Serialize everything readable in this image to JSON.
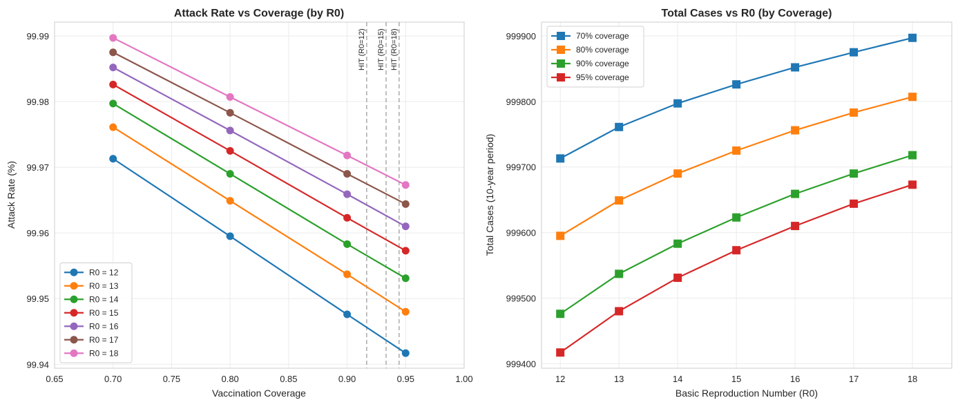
{
  "chart_data": [
    {
      "type": "line",
      "title": "Attack Rate vs Coverage (by R0)",
      "xlabel": "Vaccination Coverage",
      "ylabel": "Attack Rate (%)",
      "xlim": [
        0.65,
        1.0
      ],
      "ylim": [
        99.9394,
        99.9921
      ],
      "xticks": [
        "0.65",
        "0.70",
        "0.75",
        "0.80",
        "0.85",
        "0.90",
        "0.95",
        "1.00"
      ],
      "yticks": [
        "99.94",
        "99.95",
        "99.96",
        "99.97",
        "99.98",
        "99.99"
      ],
      "grid": true,
      "legend_position": "lower-left",
      "marker": "circle",
      "x": [
        0.7,
        0.8,
        0.9,
        0.95
      ],
      "series": [
        {
          "name": "R0 = 12",
          "color": "#1f77b4",
          "values": [
            99.9713,
            99.9595,
            99.9476,
            99.9417
          ]
        },
        {
          "name": "R0 = 13",
          "color": "#ff7f0e",
          "values": [
            99.9761,
            99.9649,
            99.9537,
            99.948
          ]
        },
        {
          "name": "R0 = 14",
          "color": "#2ca02c",
          "values": [
            99.9797,
            99.969,
            99.9583,
            99.9531
          ]
        },
        {
          "name": "R0 = 15",
          "color": "#d62728",
          "values": [
            99.9826,
            99.9725,
            99.9623,
            99.9573
          ]
        },
        {
          "name": "R0 = 16",
          "color": "#9467bd",
          "values": [
            99.9852,
            99.9756,
            99.9659,
            99.961
          ]
        },
        {
          "name": "R0 = 17",
          "color": "#8c564b",
          "values": [
            99.9875,
            99.9783,
            99.969,
            99.9644
          ]
        },
        {
          "name": "R0 = 18",
          "color": "#e377c2",
          "values": [
            99.9897,
            99.9807,
            99.9718,
            99.9673
          ]
        }
      ],
      "annotations": [
        {
          "label": "HIT (R0=12)",
          "x": 0.9167
        },
        {
          "label": "HIT (R0=15)",
          "x": 0.9333
        },
        {
          "label": "HIT (R0=18)",
          "x": 0.9444
        }
      ]
    },
    {
      "type": "line",
      "title": "Total Cases vs R0 (by Coverage)",
      "xlabel": "Basic Reproduction Number (R0)",
      "ylabel": "Total Cases (10-year period)",
      "xlim": [
        11.68,
        18.67
      ],
      "ylim": [
        999393,
        999921
      ],
      "xticks": [
        "12",
        "13",
        "14",
        "15",
        "16",
        "17",
        "18"
      ],
      "yticks": [
        "999400",
        "999500",
        "999600",
        "999700",
        "999800",
        "999900"
      ],
      "grid": true,
      "legend_position": "upper-left",
      "marker": "square",
      "x": [
        12,
        13,
        14,
        15,
        16,
        17,
        18
      ],
      "series": [
        {
          "name": "70% coverage",
          "color": "#1f77b4",
          "values": [
            999713,
            999761,
            999797,
            999826,
            999852,
            999875,
            999897
          ]
        },
        {
          "name": "80% coverage",
          "color": "#ff7f0e",
          "values": [
            999595,
            999649,
            999690,
            999725,
            999756,
            999783,
            999807
          ]
        },
        {
          "name": "90% coverage",
          "color": "#2ca02c",
          "values": [
            999476,
            999537,
            999583,
            999623,
            999659,
            999690,
            999718
          ]
        },
        {
          "name": "95% coverage",
          "color": "#d62728",
          "values": [
            999417,
            999480,
            999531,
            999573,
            999610,
            999644,
            999673
          ]
        }
      ]
    }
  ]
}
